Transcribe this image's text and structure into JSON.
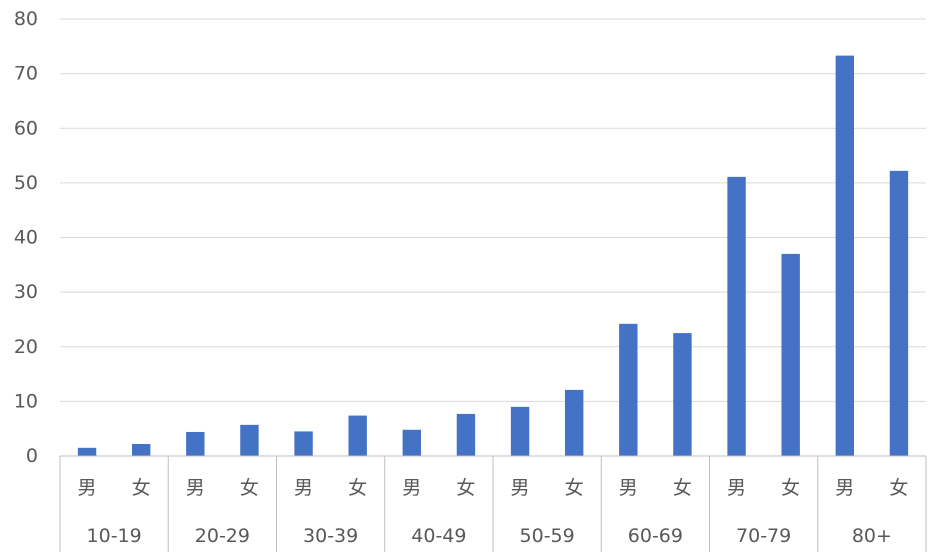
{
  "chart_data": {
    "type": "bar",
    "groups": [
      "10-19",
      "20-29",
      "30-39",
      "40-49",
      "50-59",
      "60-69",
      "70-79",
      "80+"
    ],
    "subcategories": [
      "男",
      "女"
    ],
    "values": [
      [
        1.5,
        2.2
      ],
      [
        4.4,
        5.7
      ],
      [
        4.5,
        7.4
      ],
      [
        4.8,
        7.7
      ],
      [
        9.0,
        12.1
      ],
      [
        24.2,
        22.5
      ],
      [
        51.1,
        37.0
      ],
      [
        73.3,
        52.2
      ]
    ],
    "ylim": [
      0,
      80
    ],
    "yticks": [
      0,
      10,
      20,
      30,
      40,
      50,
      60,
      70,
      80
    ],
    "grid": true,
    "legend": "none",
    "bar_color": "#4472c4"
  }
}
